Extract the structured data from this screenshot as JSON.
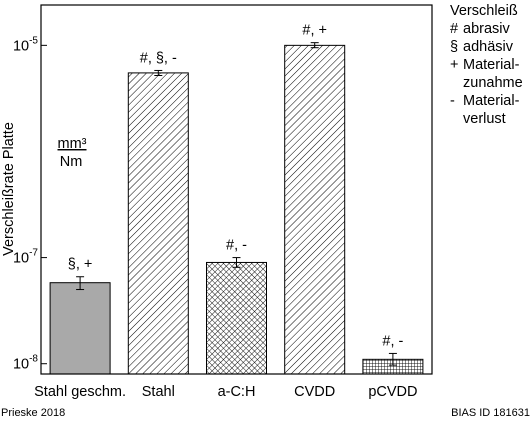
{
  "chart_data": {
    "type": "bar",
    "scale": "log",
    "ylabel": "Verschleißrate Platte",
    "unit": {
      "numerator": "mm³",
      "denominator": "Nm"
    },
    "categories": [
      "Stahl geschm.",
      "Stahl",
      "a-C:H",
      "CVDD",
      "pCVDD"
    ],
    "values": [
      5.8e-08,
      5.5e-06,
      9e-08,
      1e-05,
      1.1e-08
    ],
    "error_low": [
      5e-08,
      5.2e-06,
      8.1e-08,
      9.5e-06,
      9.7e-09
    ],
    "error_high": [
      6.6e-08,
      5.8e-06,
      1e-07,
      1.06e-05,
      1.25e-08
    ],
    "annotations": [
      "§, +",
      "#, §, -",
      "#, -",
      "#, +",
      "#, -"
    ],
    "patterns": [
      "solid-gray",
      "diagonal",
      "crosshatch",
      "diagonal",
      "grid"
    ],
    "ylim": [
      8e-09,
      2.4e-05
    ],
    "yticks": [
      {
        "value": 1e-08,
        "label": "10",
        "exp": "-8"
      },
      {
        "value": 1e-07,
        "label": "10",
        "exp": "-7"
      },
      {
        "value": 1e-05,
        "label": "10",
        "exp": "-5"
      }
    ],
    "grid": false,
    "bar_fill_color": "#a9a9a9"
  },
  "legend": {
    "title": "Verschleiß",
    "items": [
      {
        "sym": "#",
        "lines": [
          "abrasiv"
        ]
      },
      {
        "sym": "§",
        "lines": [
          "adhäsiv"
        ]
      },
      {
        "sym": "+",
        "lines": [
          "Material-",
          "zunahme"
        ]
      },
      {
        "sym": "-",
        "lines": [
          "Material-",
          "verlust"
        ]
      }
    ]
  },
  "footer": {
    "left": "Prieske 2018",
    "right": "BIAS ID 181631"
  }
}
